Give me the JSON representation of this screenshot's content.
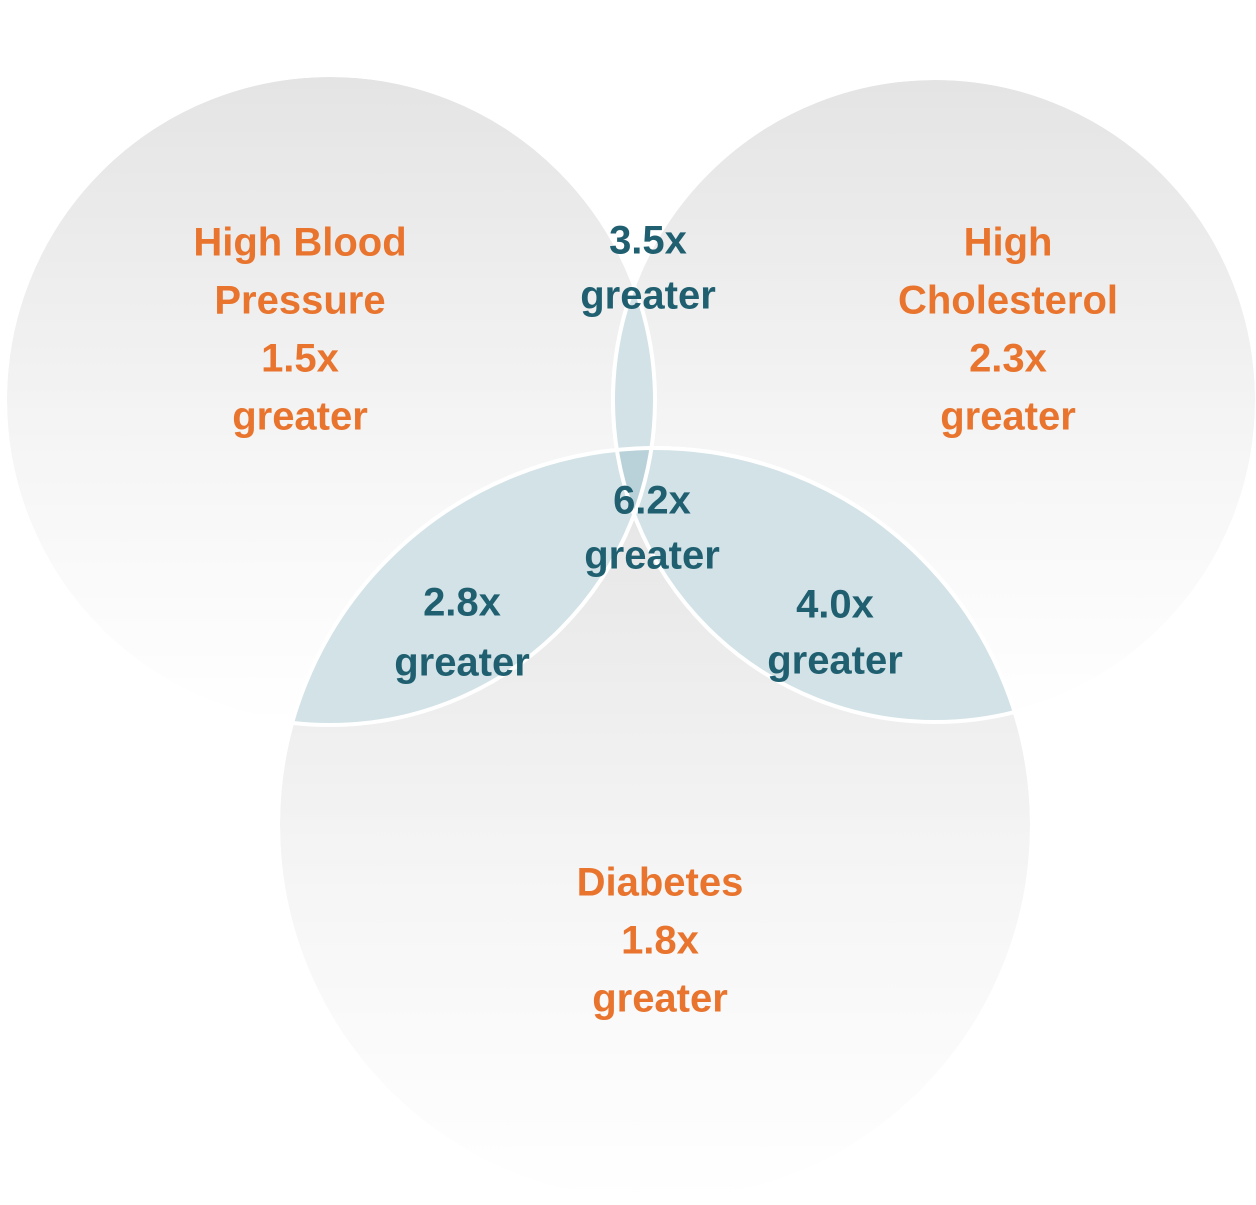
{
  "sets": [
    {
      "lines": [
        "High Blood",
        "Pressure",
        "1.5x",
        "greater"
      ]
    },
    {
      "lines": [
        "High",
        "Cholesterol",
        "2.3x",
        "greater"
      ]
    },
    {
      "lines": [
        "Diabetes",
        "1.8x",
        "greater"
      ]
    }
  ],
  "overlaps": [
    {
      "lines": [
        "3.5x",
        "greater"
      ]
    },
    {
      "lines": [
        "6.2x",
        "greater"
      ]
    },
    {
      "lines": [
        "2.8x",
        "greater"
      ]
    },
    {
      "lines": [
        "4.0x",
        "greater"
      ]
    }
  ]
}
